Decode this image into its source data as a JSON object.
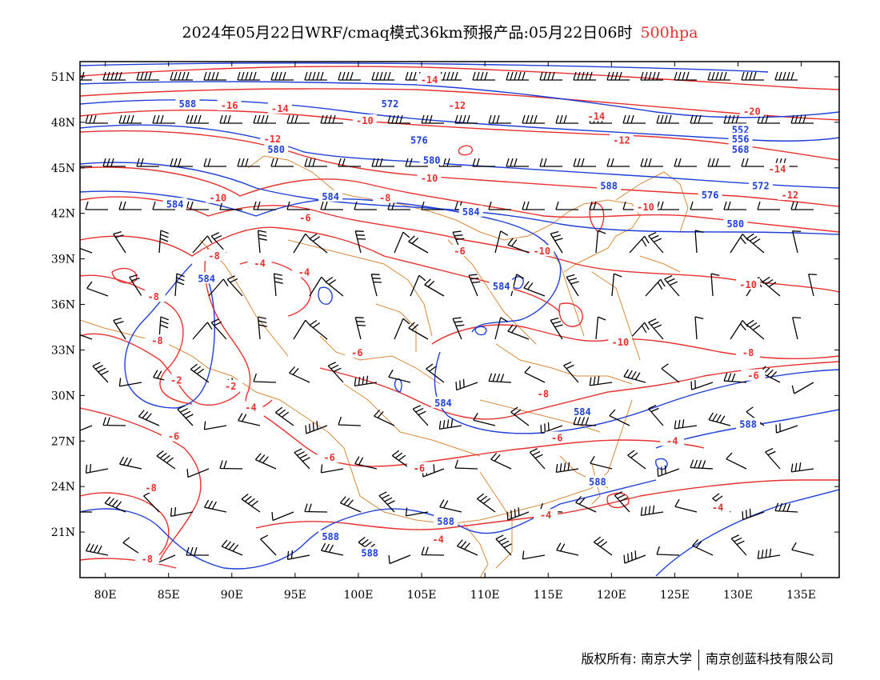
{
  "title": {
    "main": "2024年05月22日WRF/cmaq模式36km预报产品:05月22日06时",
    "level": "500hpa"
  },
  "axes": {
    "lon": {
      "min": 78,
      "max": 138,
      "labels": [
        "80E",
        "85E",
        "90E",
        "95E",
        "100E",
        "105E",
        "110E",
        "115E",
        "120E",
        "125E",
        "130E",
        "135E"
      ],
      "values": [
        80,
        85,
        90,
        95,
        100,
        105,
        110,
        115,
        120,
        125,
        130,
        135
      ]
    },
    "lat": {
      "min": 18,
      "max": 52,
      "labels": [
        "51N",
        "48N",
        "45N",
        "42N",
        "39N",
        "36N",
        "33N",
        "30N",
        "27N",
        "24N",
        "21N"
      ],
      "values": [
        51,
        48,
        45,
        42,
        39,
        36,
        33,
        30,
        27,
        24,
        21
      ]
    }
  },
  "colors": {
    "height": "#1f3fd8",
    "temperature": "#e8312f",
    "border": "#d9893a",
    "wind": "#000000"
  },
  "contour_labels": {
    "height": [
      {
        "text": "588",
        "lon": 86.5,
        "lat": 49.2
      },
      {
        "text": "572",
        "lon": 102.5,
        "lat": 49.2
      },
      {
        "text": "576",
        "lon": 104.8,
        "lat": 46.8
      },
      {
        "text": "580",
        "lon": 93.5,
        "lat": 46.2
      },
      {
        "text": "580",
        "lon": 105.8,
        "lat": 45.5
      },
      {
        "text": "584",
        "lon": 85.5,
        "lat": 42.6
      },
      {
        "text": "584",
        "lon": 97.8,
        "lat": 43.1
      },
      {
        "text": "584",
        "lon": 108.9,
        "lat": 42.1
      },
      {
        "text": "588",
        "lon": 119.8,
        "lat": 43.8
      },
      {
        "text": "576",
        "lon": 127.8,
        "lat": 43.2
      },
      {
        "text": "580",
        "lon": 129.8,
        "lat": 41.3
      },
      {
        "text": "572",
        "lon": 131.8,
        "lat": 43.8
      },
      {
        "text": "552",
        "lon": 130.2,
        "lat": 47.5
      },
      {
        "text": "556",
        "lon": 130.2,
        "lat": 46.9
      },
      {
        "text": "568",
        "lon": 130.2,
        "lat": 46.2
      },
      {
        "text": "584",
        "lon": 88.0,
        "lat": 37.7
      },
      {
        "text": "584",
        "lon": 111.3,
        "lat": 37.2
      },
      {
        "text": "584",
        "lon": 106.7,
        "lat": 29.5
      },
      {
        "text": "584",
        "lon": 117.7,
        "lat": 28.9
      },
      {
        "text": "588",
        "lon": 130.8,
        "lat": 28.1
      },
      {
        "text": "588",
        "lon": 118.9,
        "lat": 24.3
      },
      {
        "text": "588",
        "lon": 106.9,
        "lat": 21.7
      },
      {
        "text": "588",
        "lon": 97.8,
        "lat": 20.7
      },
      {
        "text": "588",
        "lon": 100.9,
        "lat": 19.6
      }
    ],
    "temperature": [
      {
        "text": "-14",
        "lon": 105.6,
        "lat": 50.8
      },
      {
        "text": "-16",
        "lon": 89.8,
        "lat": 49.1
      },
      {
        "text": "-14",
        "lon": 93.8,
        "lat": 48.9
      },
      {
        "text": "-12",
        "lon": 107.8,
        "lat": 49.1
      },
      {
        "text": "-10",
        "lon": 100.5,
        "lat": 48.1
      },
      {
        "text": "-12",
        "lon": 93.2,
        "lat": 46.9
      },
      {
        "text": "-14",
        "lon": 118.8,
        "lat": 48.4
      },
      {
        "text": "-12",
        "lon": 120.8,
        "lat": 46.8
      },
      {
        "text": "-20",
        "lon": 131.1,
        "lat": 48.7
      },
      {
        "text": "-14",
        "lon": 133.1,
        "lat": 44.9
      },
      {
        "text": "-12",
        "lon": 134.1,
        "lat": 43.2
      },
      {
        "text": "-10",
        "lon": 105.6,
        "lat": 44.3
      },
      {
        "text": "-10",
        "lon": 88.9,
        "lat": 43.0
      },
      {
        "text": "-8",
        "lon": 102.1,
        "lat": 43.0
      },
      {
        "text": "-10",
        "lon": 122.7,
        "lat": 42.4
      },
      {
        "text": "-6",
        "lon": 95.8,
        "lat": 41.7
      },
      {
        "text": "-8",
        "lon": 88.6,
        "lat": 39.2
      },
      {
        "text": "-4",
        "lon": 92.2,
        "lat": 38.7
      },
      {
        "text": "-4",
        "lon": 95.7,
        "lat": 38.1
      },
      {
        "text": "-6",
        "lon": 108.0,
        "lat": 39.5
      },
      {
        "text": "-10",
        "lon": 114.5,
        "lat": 39.5
      },
      {
        "text": "-10",
        "lon": 130.8,
        "lat": 37.3
      },
      {
        "text": "-8",
        "lon": 83.8,
        "lat": 36.5
      },
      {
        "text": "-8",
        "lon": 84.1,
        "lat": 33.6
      },
      {
        "text": "-10",
        "lon": 120.7,
        "lat": 33.5
      },
      {
        "text": "-8",
        "lon": 130.8,
        "lat": 32.8
      },
      {
        "text": "-6",
        "lon": 99.9,
        "lat": 32.8
      },
      {
        "text": "-6",
        "lon": 131.2,
        "lat": 31.3
      },
      {
        "text": "-2",
        "lon": 85.6,
        "lat": 31.0
      },
      {
        "text": "-2",
        "lon": 89.9,
        "lat": 30.6
      },
      {
        "text": "-4",
        "lon": 91.5,
        "lat": 29.2
      },
      {
        "text": "-8",
        "lon": 114.6,
        "lat": 30.1
      },
      {
        "text": "-6",
        "lon": 85.4,
        "lat": 27.3
      },
      {
        "text": "-6",
        "lon": 115.7,
        "lat": 27.2
      },
      {
        "text": "-4",
        "lon": 124.8,
        "lat": 27.0
      },
      {
        "text": "-6",
        "lon": 97.7,
        "lat": 25.9
      },
      {
        "text": "-6",
        "lon": 104.8,
        "lat": 25.2
      },
      {
        "text": "-8",
        "lon": 83.6,
        "lat": 23.9
      },
      {
        "text": "-4",
        "lon": 128.4,
        "lat": 22.6
      },
      {
        "text": "-4",
        "lon": 114.8,
        "lat": 22.1
      },
      {
        "text": "-4",
        "lon": 106.3,
        "lat": 20.5
      },
      {
        "text": "-8",
        "lon": 83.3,
        "lat": 19.2
      }
    ]
  },
  "credit": {
    "left": "版权所有: 南京大学",
    "right": "南京创蓝科技有限公司"
  }
}
